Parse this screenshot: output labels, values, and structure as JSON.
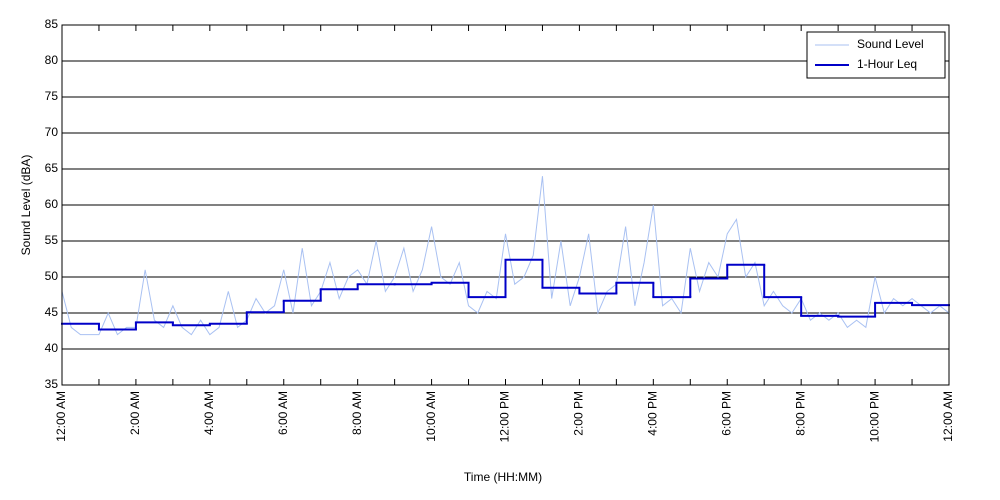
{
  "chart_data": {
    "type": "line",
    "xlabel": "Time (HH:MM)",
    "ylabel": "Sound Level (dBA)",
    "xlim": [
      0,
      24
    ],
    "xticks": [
      {
        "value": 0,
        "label": "12:00 AM"
      },
      {
        "value": 2,
        "label": "2:00 AM"
      },
      {
        "value": 4,
        "label": "4:00 AM"
      },
      {
        "value": 6,
        "label": "6:00 AM"
      },
      {
        "value": 8,
        "label": "8:00 AM"
      },
      {
        "value": 10,
        "label": "10:00 AM"
      },
      {
        "value": 12,
        "label": "12:00 PM"
      },
      {
        "value": 14,
        "label": "2:00 PM"
      },
      {
        "value": 16,
        "label": "4:00 PM"
      },
      {
        "value": 18,
        "label": "6:00 PM"
      },
      {
        "value": 20,
        "label": "8:00 PM"
      },
      {
        "value": 22,
        "label": "10:00 PM"
      },
      {
        "value": 24,
        "label": "12:00 AM"
      }
    ],
    "xminor_ticks": [
      1,
      3,
      5,
      7,
      9,
      11,
      13,
      15,
      17,
      19,
      21,
      23
    ],
    "ylim": [
      35,
      85
    ],
    "yticks": [
      35,
      40,
      45,
      50,
      55,
      60,
      65,
      70,
      75,
      80,
      85
    ],
    "grid": true,
    "legend": "upper right",
    "series": [
      {
        "name": "Sound Level",
        "color": "#a9c1f2",
        "width": 1,
        "x": [
          0,
          0.25,
          0.5,
          0.75,
          1,
          1.25,
          1.5,
          1.75,
          2,
          2.25,
          2.5,
          2.75,
          3,
          3.25,
          3.5,
          3.75,
          4,
          4.25,
          4.5,
          4.75,
          5,
          5.25,
          5.5,
          5.75,
          6,
          6.25,
          6.5,
          6.75,
          7,
          7.25,
          7.5,
          7.75,
          8,
          8.25,
          8.5,
          8.75,
          9,
          9.25,
          9.5,
          9.75,
          10,
          10.25,
          10.5,
          10.75,
          11,
          11.25,
          11.5,
          11.75,
          12,
          12.25,
          12.5,
          12.75,
          13,
          13.25,
          13.5,
          13.75,
          14,
          14.25,
          14.5,
          14.75,
          15,
          15.25,
          15.5,
          15.75,
          16,
          16.25,
          16.5,
          16.75,
          17,
          17.25,
          17.5,
          17.75,
          18,
          18.25,
          18.5,
          18.75,
          19,
          19.25,
          19.5,
          19.75,
          20,
          20.25,
          20.5,
          20.75,
          21,
          21.25,
          21.5,
          21.75,
          22,
          22.25,
          22.5,
          22.75,
          23,
          23.25,
          23.5,
          23.75,
          24
        ],
        "values": [
          48,
          43,
          42,
          42,
          42,
          45,
          42,
          43,
          43,
          51,
          44,
          43,
          46,
          43,
          42,
          44,
          42,
          43,
          48,
          43,
          44,
          47,
          45,
          46,
          51,
          45,
          54,
          46,
          48,
          52,
          47,
          50,
          51,
          49,
          55,
          48,
          50,
          54,
          48,
          51,
          57,
          50,
          49,
          52,
          46,
          45,
          48,
          47,
          56,
          49,
          50,
          53,
          64,
          47,
          55,
          46,
          50,
          56,
          45,
          48,
          49,
          57,
          46,
          52,
          60,
          46,
          47,
          45,
          54,
          48,
          52,
          50,
          56,
          58,
          50,
          52,
          46,
          48,
          46,
          45,
          47,
          44,
          45,
          44,
          45,
          43,
          44,
          43,
          50,
          45,
          47,
          46,
          47,
          46,
          45,
          46,
          45
        ]
      },
      {
        "name": "1-Hour Leq",
        "color": "#0000c8",
        "width": 2,
        "drawstyle": "steps-post",
        "x": [
          0,
          1,
          2,
          3,
          4,
          5,
          6,
          7,
          8,
          9,
          10,
          11,
          12,
          13,
          14,
          15,
          16,
          17,
          18,
          19,
          20,
          21,
          22,
          23
        ],
        "values": [
          43.5,
          42.7,
          43.7,
          43.3,
          43.5,
          45.1,
          46.7,
          48.3,
          49.0,
          49.0,
          49.2,
          47.2,
          52.4,
          48.5,
          47.7,
          49.2,
          47.2,
          49.8,
          51.7,
          47.2,
          44.6,
          44.5,
          46.4,
          46.1
        ]
      }
    ]
  }
}
